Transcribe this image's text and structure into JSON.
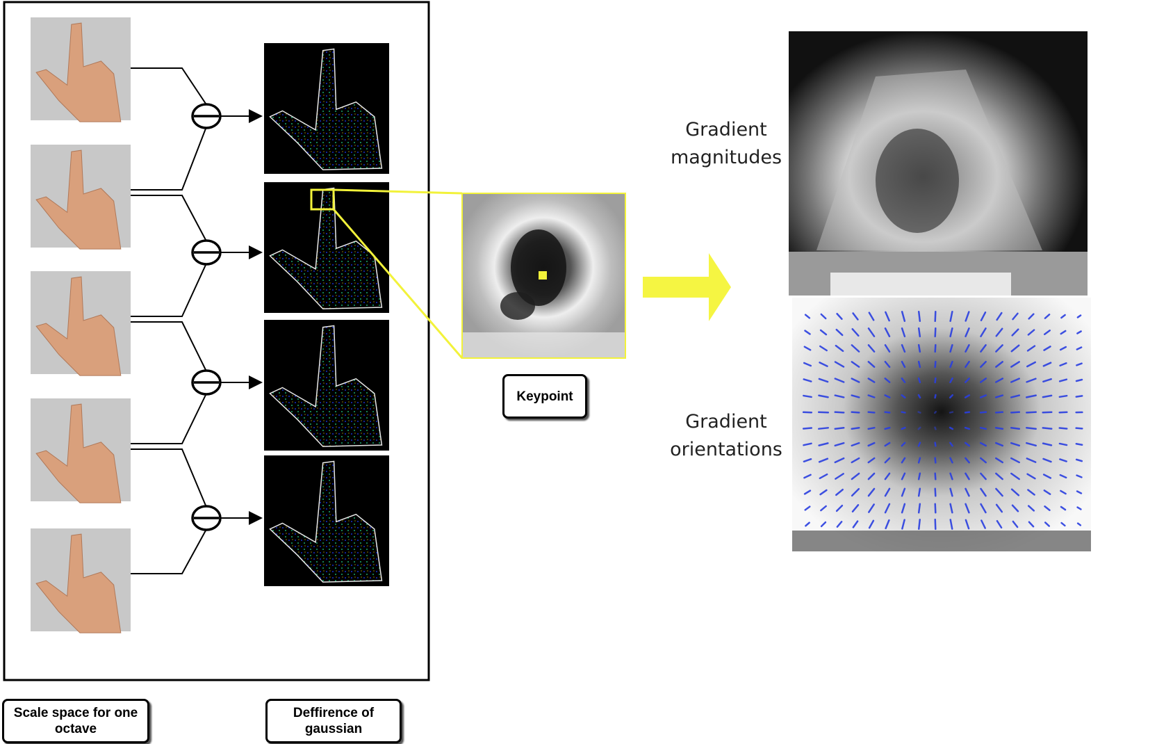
{
  "labels": {
    "scale_space": "Scale space for one octave",
    "dog": "Deffirence of gaussian",
    "keypoint": "Keypoint",
    "grad_mag": "Gradient magnitudes",
    "grad_ori": "Gradient orientations"
  },
  "colors": {
    "frame": "#000000",
    "highlight": "#f2f23a",
    "arrow": "#f5f542",
    "hand_background": "#c8c8c8",
    "skin": "#d9a07c",
    "dog_background": "#000000",
    "orientation_vectors": "#2a3fe0"
  },
  "icons": {
    "subtract": "circle-minus-icon",
    "hand": "hand-pointing-image",
    "arrow": "right-arrow-icon"
  },
  "scale_space_image_count": 5,
  "dog_image_count": 4
}
